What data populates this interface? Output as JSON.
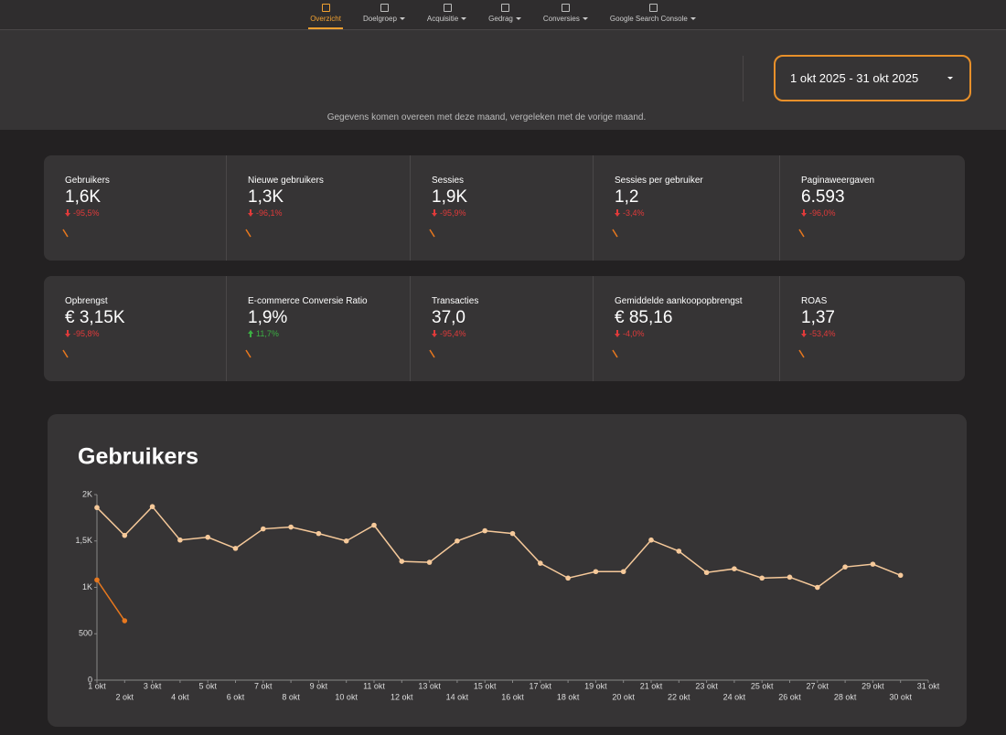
{
  "nav": {
    "items": [
      {
        "label": "Overzicht",
        "active": true,
        "dropdown": false
      },
      {
        "label": "Doelgroep",
        "active": false,
        "dropdown": true
      },
      {
        "label": "Acquisitie",
        "active": false,
        "dropdown": true
      },
      {
        "label": "Gedrag",
        "active": false,
        "dropdown": true
      },
      {
        "label": "Conversies",
        "active": false,
        "dropdown": true
      },
      {
        "label": "Google Search Console",
        "active": false,
        "dropdown": true
      }
    ]
  },
  "date_range": "1 okt 2025 - 31 okt 2025",
  "note": "Gegevens komen overeen met deze maand, vergeleken met de vorige maand.",
  "kpis": [
    [
      {
        "label": "Gebruikers",
        "value": "1,6K",
        "change": "-95,5%",
        "trend": "down"
      },
      {
        "label": "Nieuwe gebruikers",
        "value": "1,3K",
        "change": "-96,1%",
        "trend": "down"
      },
      {
        "label": "Sessies",
        "value": "1,9K",
        "change": "-95,9%",
        "trend": "down"
      },
      {
        "label": "Sessies per gebruiker",
        "value": "1,2",
        "change": "-3,4%",
        "trend": "down"
      },
      {
        "label": "Paginaweergaven",
        "value": "6.593",
        "change": "-96,0%",
        "trend": "down"
      }
    ],
    [
      {
        "label": "Opbrengst",
        "value": "€ 3,15K",
        "change": "-95,8%",
        "trend": "down"
      },
      {
        "label": "E-commerce Conversie Ratio",
        "value": "1,9%",
        "change": "11,7%",
        "trend": "up"
      },
      {
        "label": "Transacties",
        "value": "37,0",
        "change": "-95,4%",
        "trend": "down"
      },
      {
        "label": "Gemiddelde aankoopopbrengst",
        "value": "€ 85,16",
        "change": "-4,0%",
        "trend": "down"
      },
      {
        "label": "ROAS",
        "value": "1,37",
        "change": "-53,4%",
        "trend": "down"
      }
    ]
  ],
  "chart_data": {
    "type": "line",
    "title": "Gebruikers",
    "categories": [
      "1 okt",
      "2 okt",
      "3 okt",
      "4 okt",
      "5 okt",
      "6 okt",
      "7 okt",
      "8 okt",
      "9 okt",
      "10 okt",
      "11 okt",
      "12 okt",
      "13 okt",
      "14 okt",
      "15 okt",
      "16 okt",
      "17 okt",
      "18 okt",
      "19 okt",
      "20 okt",
      "21 okt",
      "22 okt",
      "23 okt",
      "24 okt",
      "25 okt",
      "26 okt",
      "27 okt",
      "28 okt",
      "29 okt",
      "30 okt",
      "31 okt"
    ],
    "series": [
      {
        "color": "#f6c99a",
        "values": [
          1860,
          1560,
          1870,
          1510,
          1540,
          1420,
          1630,
          1650,
          1580,
          1500,
          1670,
          1280,
          1270,
          1500,
          1610,
          1580,
          1260,
          1100,
          1170,
          1170,
          1510,
          1390,
          1160,
          1200,
          1100,
          1110,
          1000,
          1220,
          1250,
          1130,
          null
        ]
      },
      {
        "color": "#e8781e",
        "values": [
          1080,
          640,
          null,
          null,
          null,
          null,
          null,
          null,
          null,
          null,
          null,
          null,
          null,
          null,
          null,
          null,
          null,
          null,
          null,
          null,
          null,
          null,
          null,
          null,
          null,
          null,
          null,
          null,
          null,
          null,
          null
        ]
      }
    ],
    "ylim": [
      0,
      2000
    ],
    "yticks": [
      0,
      500,
      {
        "value": 1000,
        "label": "1K"
      },
      {
        "value": 1500,
        "label": "1,5K"
      },
      {
        "value": 2000,
        "label": "2K"
      }
    ]
  }
}
